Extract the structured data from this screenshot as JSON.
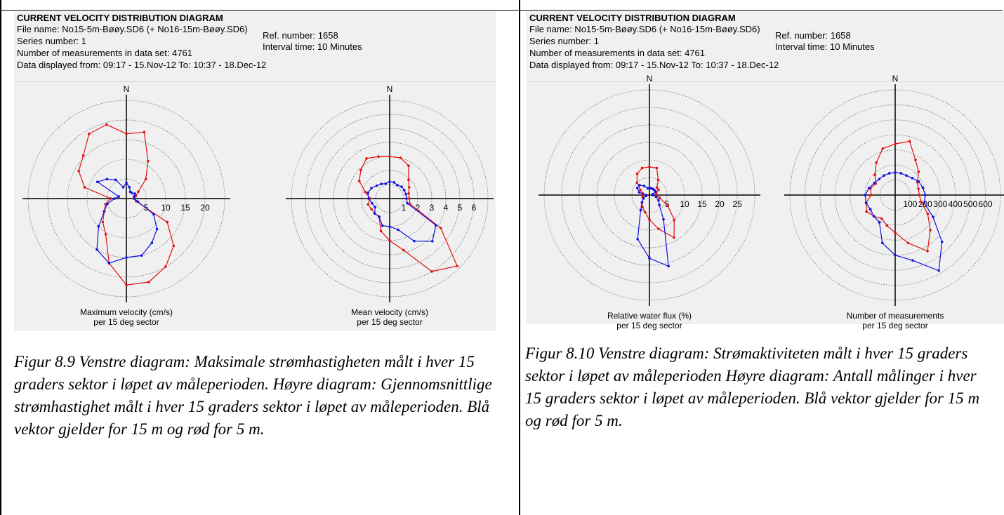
{
  "header": {
    "title": "CURRENT VELOCITY DISTRIBUTION DIAGRAM",
    "file_name": "File name: No15-5m-Bøøy.SD6 (+ No16-15m-Bøøy.SD6)",
    "series_number": "Series number: 1",
    "measurements": "Number of measurements in data set: 4761",
    "data_displayed": "Data displayed from: 09:17 - 15.Nov-12   To: 10:37 - 18.Dec-12",
    "ref_number": "Ref. number: 1658",
    "interval_time": "Interval time: 10 Minutes"
  },
  "north_label": "N",
  "colors": {
    "red": "#e01010",
    "blue": "#1010e0",
    "panel_bg": "#f0f0f0"
  },
  "captions": {
    "left": "Figur 8.9 Venstre diagram: Maksimale strømhastigheten målt i hver 15 graders sektor i løpet av måleperioden. Høyre diagram: Gjennomsnittlige strømhastighet målt i hver 15 graders sektor i løpet av måleperioden. Blå vektor gjelder for 15 m og rød for 5 m.",
    "right": "Figur 8.10 Venstre diagram: Strømaktiviteten målt i hver 15 graders sektor i løpet av måleperioden Høyre diagram: Antall målinger i hver 15 graders sektor i løpet av måleperioden. Blå vektor gjelder for 15 m og rød for 5 m."
  },
  "chart_data": [
    {
      "type": "polar-line",
      "caption_line1": "Maximum velocity (cm/s)",
      "caption_line2": "per 15 deg sector",
      "ticks": [
        "5",
        "10",
        "15",
        "20"
      ],
      "rmax": 25,
      "angles_deg": [
        0,
        15,
        30,
        45,
        60,
        75,
        90,
        105,
        120,
        135,
        150,
        165,
        180,
        195,
        210,
        225,
        240,
        255,
        270,
        285,
        300,
        315,
        330,
        345
      ],
      "series": [
        {
          "color": "red",
          "values": [
            16.5,
            17.5,
            11,
            7,
            3.5,
            2.5,
            2,
            2.5,
            12,
            17,
            20,
            22,
            22,
            17,
            10.5,
            8.5,
            6.5,
            5.5,
            4,
            11,
            14,
            15.5,
            19,
            19.5
          ]
        },
        {
          "color": "blue",
          "values": [
            4,
            3,
            2,
            2,
            2.5,
            2,
            2,
            3,
            8,
            11,
            13,
            15,
            15,
            17,
            15,
            10,
            6.5,
            5,
            3,
            2,
            8.5,
            7,
            5.5,
            3
          ]
        }
      ]
    },
    {
      "type": "polar-line",
      "caption_line1": "Mean velocity (cm/s)",
      "caption_line2": "per 15 deg sector",
      "ticks": [
        "1",
        "2",
        "3",
        "4",
        "5",
        "6"
      ],
      "rmax": 7,
      "angles_deg": [
        0,
        15,
        30,
        45,
        60,
        75,
        90,
        105,
        120,
        135,
        150,
        165,
        180,
        195,
        210,
        225,
        240,
        255,
        270,
        285,
        300,
        315,
        330,
        345
      ],
      "series": [
        {
          "color": "red",
          "values": [
            3,
            3,
            2.7,
            1.9,
            1.6,
            1.4,
            1.4,
            1.5,
            4.2,
            6.8,
            6,
            3.8,
            3,
            2.4,
            1.5,
            1.5,
            1.5,
            1.6,
            1.4,
            1.8,
            2.5,
            2.9,
            3.3,
            3.1
          ]
        },
        {
          "color": "blue",
          "values": [
            1.2,
            1.2,
            1.1,
            1.2,
            1.2,
            1.2,
            1.2,
            1.3,
            3.8,
            4.3,
            3.5,
            2.3,
            2,
            2,
            1.5,
            1.5,
            1.2,
            1.3,
            1.5,
            1.6,
            1.5,
            1.3,
            1.2,
            1.1
          ]
        }
      ]
    },
    {
      "type": "polar-line",
      "caption_line1": "Relative water flux (%)",
      "caption_line2": "per 15 deg sector",
      "ticks": [
        "5",
        "10",
        "15",
        "20",
        "25"
      ],
      "rmax": 30,
      "angles_deg": [
        0,
        15,
        30,
        45,
        60,
        75,
        90,
        105,
        120,
        135,
        150,
        165,
        180,
        195,
        210,
        225,
        240,
        255,
        270,
        285,
        300,
        315,
        330,
        345
      ],
      "series": [
        {
          "color": "red",
          "values": [
            8,
            8,
            5,
            3,
            3,
            2,
            2,
            3,
            6,
            10,
            14,
            10,
            7,
            5,
            4,
            3,
            2,
            2,
            2,
            2,
            3,
            5,
            7,
            8
          ]
        },
        {
          "color": "blue",
          "values": [
            2,
            2,
            2,
            2,
            2,
            1,
            1,
            2,
            3,
            4,
            8,
            21,
            18,
            13,
            5,
            3,
            2,
            1,
            1,
            3,
            4,
            4,
            3,
            2
          ]
        }
      ]
    },
    {
      "type": "polar-line",
      "caption_line1": "Number of measurements",
      "caption_line2": "per 15 deg sector",
      "ticks": [
        "100",
        "200",
        "300",
        "400",
        "500",
        "600"
      ],
      "rmax": 700,
      "angles_deg": [
        0,
        15,
        30,
        45,
        60,
        75,
        90,
        105,
        120,
        135,
        150,
        165,
        180,
        195,
        210,
        225,
        240,
        255,
        270,
        285,
        300,
        315,
        330,
        345
      ],
      "series": [
        {
          "color": "red",
          "values": [
            340,
            370,
            270,
            220,
            170,
            160,
            160,
            180,
            250,
            330,
            430,
            330,
            250,
            210,
            180,
            200,
            220,
            200,
            160,
            170,
            150,
            190,
            250,
            320
          ]
        },
        {
          "color": "blue",
          "values": [
            150,
            150,
            150,
            160,
            180,
            190,
            200,
            200,
            290,
            440,
            580,
            450,
            400,
            330,
            210,
            200,
            190,
            200,
            200,
            180,
            160,
            150,
            150,
            150
          ]
        }
      ]
    }
  ]
}
